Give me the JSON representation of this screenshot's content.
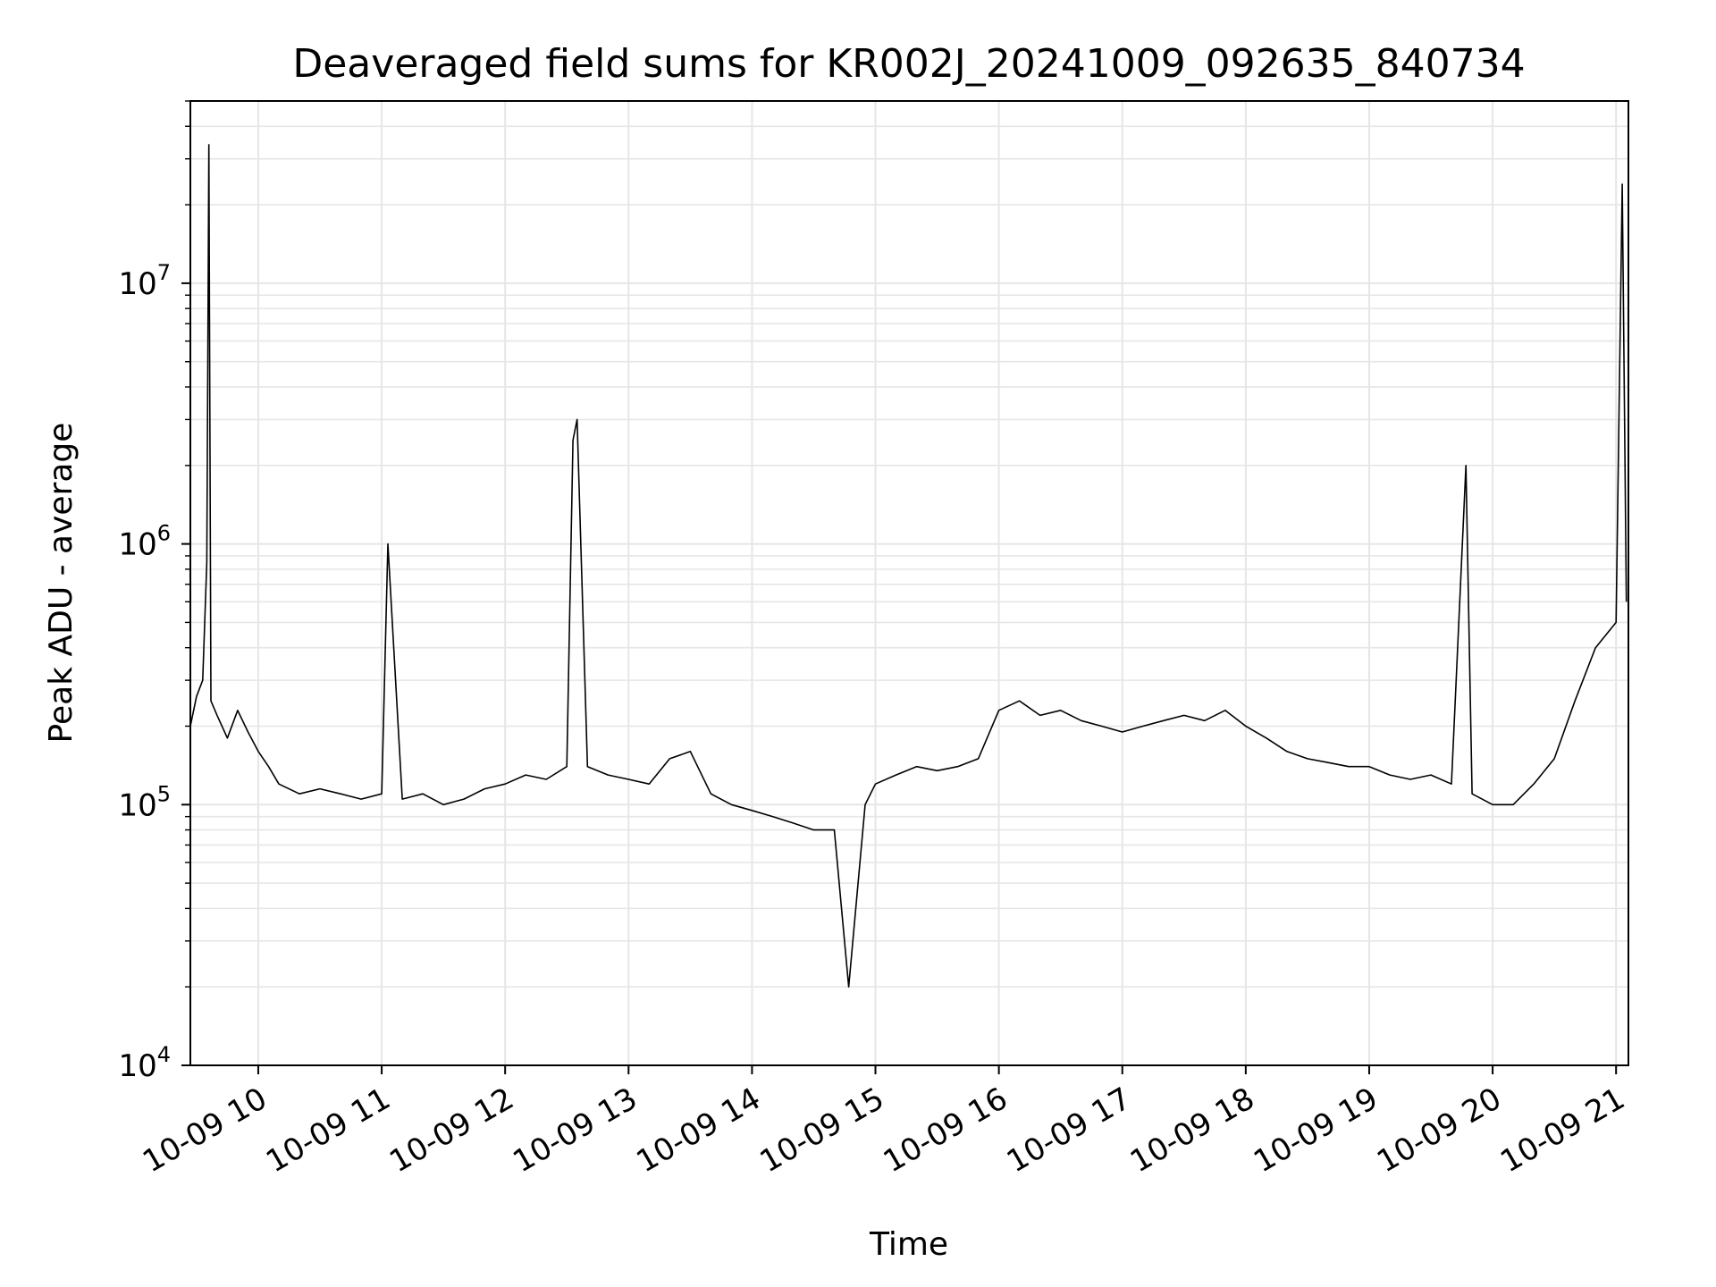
{
  "chart_data": {
    "type": "line",
    "title": "Deaveraged field sums for KR002J_20241009_092635_840734",
    "xlabel": "Time",
    "ylabel": "Peak ADU - average",
    "yscale": "log",
    "ylim": [
      10000,
      50000000
    ],
    "xlim": [
      "2024-10-09 09:27",
      "2024-10-09 21:06"
    ],
    "grid": true,
    "line_color": "#000000",
    "grid_color": "#e6e6e6",
    "x_ticks": [
      "10-09 10",
      "10-09 11",
      "10-09 12",
      "10-09 13",
      "10-09 14",
      "10-09 15",
      "10-09 16",
      "10-09 17",
      "10-09 18",
      "10-09 19",
      "10-09 20",
      "10-09 21"
    ],
    "y_ticks": [
      {
        "base": "10",
        "exp": "4",
        "value": 10000
      },
      {
        "base": "10",
        "exp": "5",
        "value": 100000
      },
      {
        "base": "10",
        "exp": "6",
        "value": 1000000
      },
      {
        "base": "10",
        "exp": "7",
        "value": 10000000
      }
    ],
    "series": [
      {
        "points": [
          [
            "09:27",
            200000
          ],
          [
            "09:30",
            260000
          ],
          [
            "09:33",
            300000
          ],
          [
            "09:35",
            850000
          ],
          [
            "09:36",
            34000000
          ],
          [
            "09:37",
            250000
          ],
          [
            "09:40",
            220000
          ],
          [
            "09:45",
            180000
          ],
          [
            "09:50",
            230000
          ],
          [
            "09:55",
            190000
          ],
          [
            "10:00",
            160000
          ],
          [
            "10:05",
            140000
          ],
          [
            "10:10",
            120000
          ],
          [
            "10:20",
            110000
          ],
          [
            "10:30",
            115000
          ],
          [
            "10:40",
            110000
          ],
          [
            "10:50",
            105000
          ],
          [
            "11:00",
            110000
          ],
          [
            "11:03",
            1000000
          ],
          [
            "11:10",
            105000
          ],
          [
            "11:20",
            110000
          ],
          [
            "11:30",
            100000
          ],
          [
            "11:40",
            105000
          ],
          [
            "11:50",
            115000
          ],
          [
            "12:00",
            120000
          ],
          [
            "12:10",
            130000
          ],
          [
            "12:20",
            125000
          ],
          [
            "12:30",
            140000
          ],
          [
            "12:33",
            2500000
          ],
          [
            "12:35",
            3000000
          ],
          [
            "12:40",
            140000
          ],
          [
            "12:50",
            130000
          ],
          [
            "13:00",
            125000
          ],
          [
            "13:10",
            120000
          ],
          [
            "13:20",
            150000
          ],
          [
            "13:30",
            160000
          ],
          [
            "13:40",
            110000
          ],
          [
            "13:50",
            100000
          ],
          [
            "14:00",
            95000
          ],
          [
            "14:10",
            90000
          ],
          [
            "14:20",
            85000
          ],
          [
            "14:30",
            80000
          ],
          [
            "14:40",
            80000
          ],
          [
            "14:47",
            20000
          ],
          [
            "14:55",
            100000
          ],
          [
            "15:00",
            120000
          ],
          [
            "15:10",
            130000
          ],
          [
            "15:20",
            140000
          ],
          [
            "15:30",
            135000
          ],
          [
            "15:40",
            140000
          ],
          [
            "15:50",
            150000
          ],
          [
            "16:00",
            230000
          ],
          [
            "16:10",
            250000
          ],
          [
            "16:20",
            220000
          ],
          [
            "16:30",
            230000
          ],
          [
            "16:40",
            210000
          ],
          [
            "16:50",
            200000
          ],
          [
            "17:00",
            190000
          ],
          [
            "17:10",
            200000
          ],
          [
            "17:20",
            210000
          ],
          [
            "17:30",
            220000
          ],
          [
            "17:40",
            210000
          ],
          [
            "17:50",
            230000
          ],
          [
            "18:00",
            200000
          ],
          [
            "18:10",
            180000
          ],
          [
            "18:20",
            160000
          ],
          [
            "18:30",
            150000
          ],
          [
            "18:40",
            145000
          ],
          [
            "18:50",
            140000
          ],
          [
            "19:00",
            140000
          ],
          [
            "19:10",
            130000
          ],
          [
            "19:20",
            125000
          ],
          [
            "19:30",
            130000
          ],
          [
            "19:40",
            120000
          ],
          [
            "19:47",
            2000000
          ],
          [
            "19:50",
            110000
          ],
          [
            "20:00",
            100000
          ],
          [
            "20:10",
            100000
          ],
          [
            "20:20",
            120000
          ],
          [
            "20:30",
            150000
          ],
          [
            "20:40",
            250000
          ],
          [
            "20:50",
            400000
          ],
          [
            "21:00",
            500000
          ],
          [
            "21:03",
            24000000
          ],
          [
            "21:05",
            600000
          ]
        ]
      }
    ]
  }
}
